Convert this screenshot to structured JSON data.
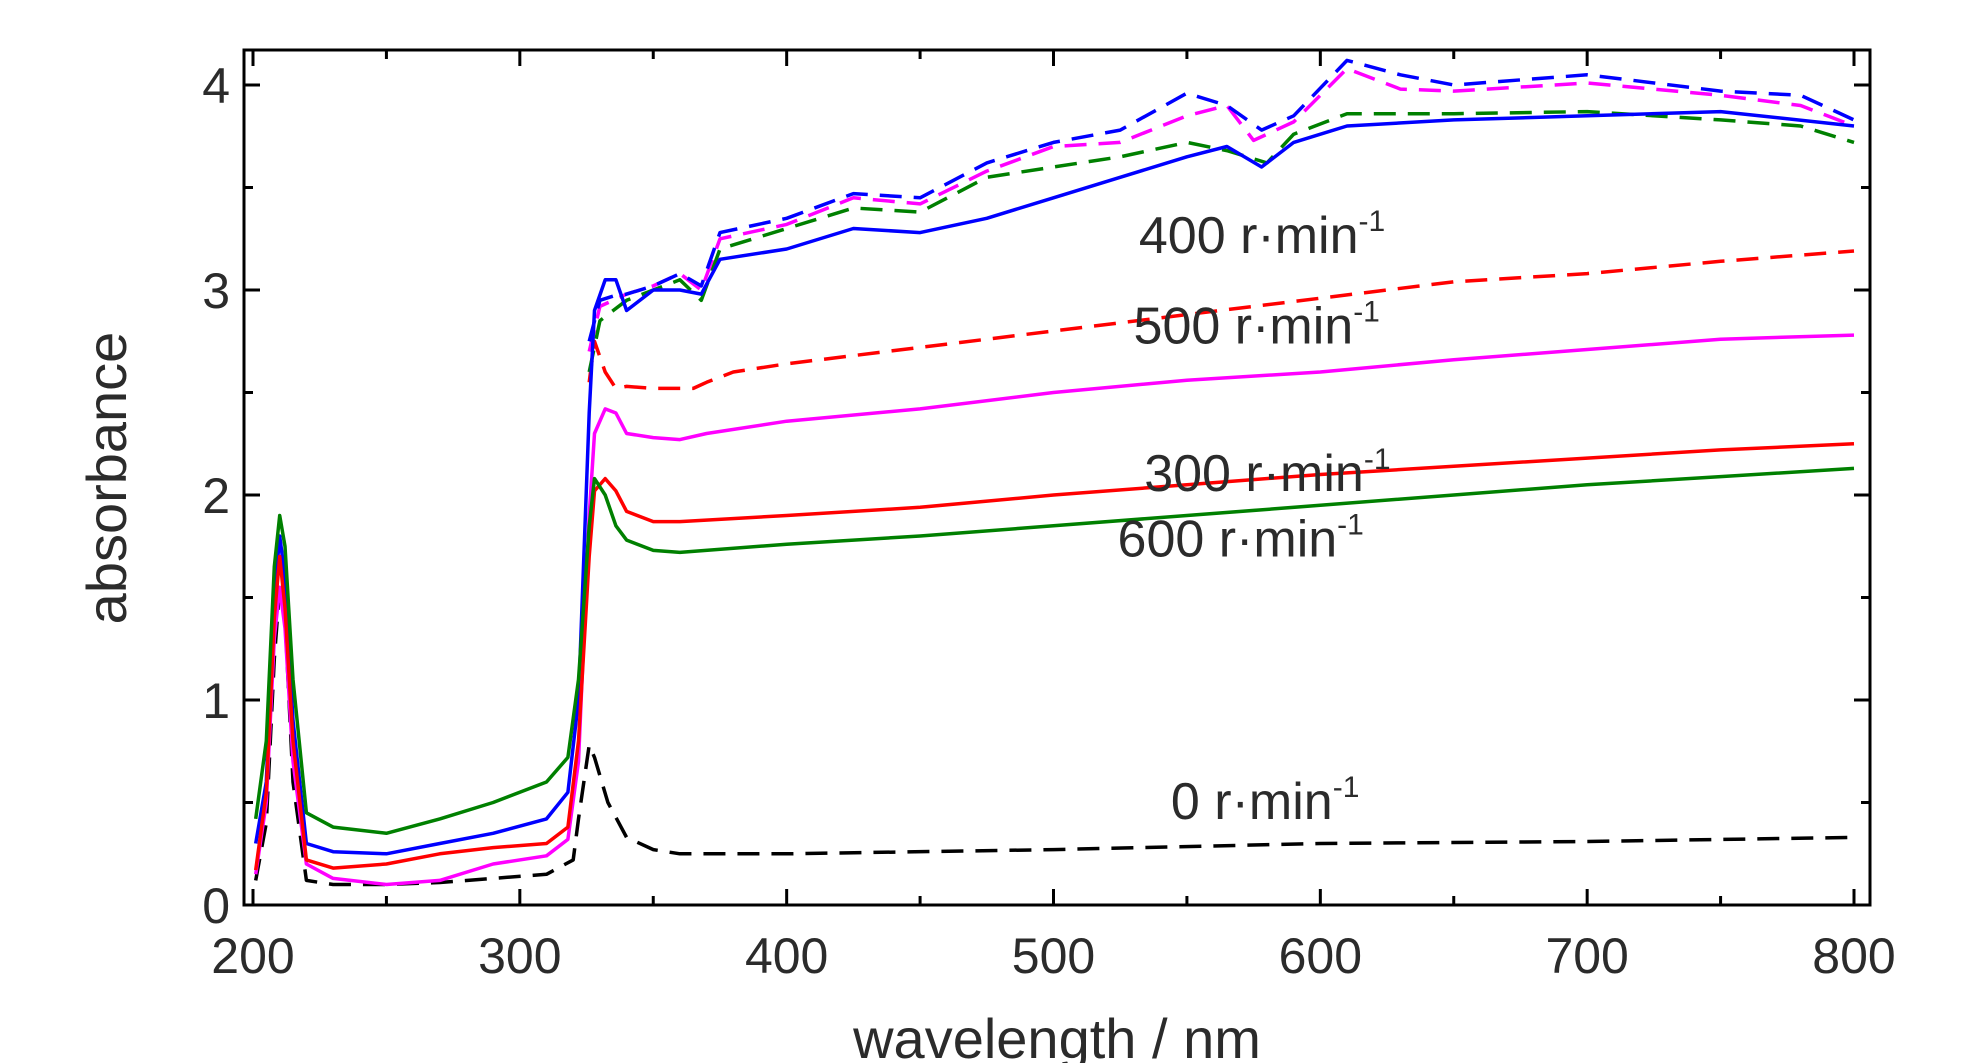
{
  "chart_data": {
    "type": "line",
    "title": "",
    "xlabel": "wavelength / nm",
    "ylabel": "absorbance",
    "xlim": [
      200,
      800
    ],
    "ylim": [
      0,
      4.2
    ],
    "xticks": [
      200,
      300,
      400,
      500,
      600,
      700,
      800
    ],
    "xtick_labels": [
      "200",
      "300",
      "400",
      "500",
      "600",
      "700",
      "800"
    ],
    "yticks": [
      0,
      1,
      2,
      3,
      4
    ],
    "ytick_labels": [
      "0",
      "1",
      "2",
      "3",
      "4"
    ],
    "grid": false,
    "series": [
      {
        "color": "#000000",
        "dash": true,
        "x": [
          201,
          205,
          208,
          210,
          212,
          215,
          220,
          230,
          250,
          270,
          290,
          310,
          320,
          322,
          326,
          328,
          333,
          340,
          350,
          360,
          400,
          500,
          600,
          700,
          800
        ],
        "y": [
          0.12,
          0.4,
          1.2,
          1.55,
          1.4,
          0.6,
          0.12,
          0.1,
          0.1,
          0.11,
          0.13,
          0.15,
          0.22,
          0.42,
          0.78,
          0.72,
          0.5,
          0.33,
          0.27,
          0.25,
          0.25,
          0.27,
          0.3,
          0.31,
          0.33
        ]
      },
      {
        "color": "#ff0000",
        "dash": true,
        "x": [
          326,
          328,
          332,
          336,
          340,
          350,
          365,
          370,
          380,
          400,
          450,
          500,
          550,
          600,
          650,
          700,
          750,
          800
        ],
        "y": [
          2.55,
          2.75,
          2.6,
          2.52,
          2.53,
          2.52,
          2.52,
          2.55,
          2.6,
          2.64,
          2.72,
          2.8,
          2.88,
          2.96,
          3.04,
          3.08,
          3.14,
          3.19
        ]
      },
      {
        "color": "#ff00ff",
        "dash": true,
        "x": [
          326,
          330,
          335,
          340,
          350,
          360,
          368,
          375,
          400,
          425,
          450,
          475,
          500,
          525,
          550,
          565,
          575,
          590,
          610,
          630,
          650,
          700,
          750,
          780,
          800
        ],
        "y": [
          2.7,
          2.92,
          2.95,
          2.98,
          3.02,
          3.08,
          3.0,
          3.25,
          3.32,
          3.45,
          3.42,
          3.58,
          3.7,
          3.72,
          3.85,
          3.9,
          3.73,
          3.82,
          4.08,
          3.98,
          3.97,
          4.01,
          3.95,
          3.9,
          3.8
        ]
      },
      {
        "color": "#0000ff",
        "dash": true,
        "x": [
          326,
          330,
          335,
          340,
          350,
          360,
          368,
          375,
          400,
          425,
          450,
          475,
          500,
          525,
          550,
          565,
          578,
          590,
          610,
          630,
          650,
          700,
          750,
          780,
          800
        ],
        "y": [
          2.75,
          2.95,
          2.97,
          2.98,
          3.02,
          3.08,
          3.02,
          3.28,
          3.35,
          3.47,
          3.45,
          3.62,
          3.72,
          3.78,
          3.96,
          3.9,
          3.78,
          3.85,
          4.12,
          4.05,
          4.0,
          4.05,
          3.97,
          3.95,
          3.83
        ]
      },
      {
        "color": "#008000",
        "dash": true,
        "x": [
          326,
          330,
          335,
          340,
          350,
          360,
          368,
          375,
          400,
          425,
          450,
          475,
          500,
          525,
          550,
          565,
          580,
          590,
          610,
          650,
          700,
          750,
          780,
          800
        ],
        "y": [
          2.6,
          2.85,
          2.9,
          2.95,
          3.0,
          3.05,
          2.95,
          3.2,
          3.3,
          3.4,
          3.38,
          3.55,
          3.6,
          3.65,
          3.72,
          3.68,
          3.62,
          3.76,
          3.86,
          3.86,
          3.87,
          3.83,
          3.8,
          3.72
        ]
      },
      {
        "color": "#0000ff",
        "dash": false,
        "x": [
          201,
          205,
          208,
          210,
          212,
          215,
          220,
          230,
          250,
          270,
          290,
          310,
          318,
          322,
          326,
          328,
          332,
          336,
          340,
          350,
          360,
          368,
          375,
          400,
          425,
          450,
          475,
          500,
          525,
          550,
          565,
          578,
          590,
          610,
          650,
          700,
          750,
          800
        ],
        "y": [
          0.3,
          0.6,
          1.5,
          1.8,
          1.6,
          0.9,
          0.3,
          0.26,
          0.25,
          0.3,
          0.35,
          0.42,
          0.55,
          1.0,
          2.4,
          2.9,
          3.05,
          3.05,
          2.9,
          3.0,
          3.0,
          2.98,
          3.15,
          3.2,
          3.3,
          3.28,
          3.35,
          3.45,
          3.55,
          3.65,
          3.7,
          3.6,
          3.72,
          3.8,
          3.83,
          3.85,
          3.87,
          3.8
        ]
      },
      {
        "color": "#ff00ff",
        "dash": false,
        "x": [
          201,
          205,
          208,
          210,
          212,
          215,
          220,
          230,
          250,
          270,
          290,
          310,
          318,
          322,
          326,
          328,
          332,
          336,
          340,
          350,
          360,
          370,
          400,
          450,
          500,
          550,
          600,
          650,
          700,
          750,
          800
        ],
        "y": [
          0.15,
          0.5,
          1.3,
          1.55,
          1.35,
          0.7,
          0.2,
          0.13,
          0.1,
          0.12,
          0.2,
          0.24,
          0.32,
          0.7,
          1.9,
          2.3,
          2.42,
          2.4,
          2.3,
          2.28,
          2.27,
          2.3,
          2.36,
          2.42,
          2.5,
          2.56,
          2.6,
          2.66,
          2.71,
          2.76,
          2.78
        ]
      },
      {
        "color": "#ff0000",
        "dash": false,
        "x": [
          201,
          205,
          208,
          210,
          212,
          215,
          220,
          230,
          250,
          270,
          290,
          310,
          318,
          322,
          326,
          328,
          332,
          336,
          340,
          350,
          360,
          400,
          450,
          500,
          550,
          600,
          650,
          700,
          750,
          800
        ],
        "y": [
          0.17,
          0.55,
          1.4,
          1.7,
          1.45,
          0.8,
          0.22,
          0.18,
          0.2,
          0.25,
          0.28,
          0.3,
          0.38,
          0.8,
          1.7,
          2.02,
          2.08,
          2.02,
          1.92,
          1.87,
          1.87,
          1.9,
          1.94,
          2.0,
          2.05,
          2.1,
          2.14,
          2.18,
          2.22,
          2.25
        ]
      },
      {
        "color": "#008000",
        "dash": false,
        "x": [
          201,
          205,
          208,
          210,
          212,
          215,
          220,
          230,
          250,
          270,
          290,
          310,
          318,
          322,
          326,
          328,
          332,
          336,
          340,
          350,
          360,
          400,
          450,
          500,
          550,
          600,
          650,
          700,
          750,
          800
        ],
        "y": [
          0.42,
          0.8,
          1.65,
          1.9,
          1.75,
          1.1,
          0.45,
          0.38,
          0.35,
          0.42,
          0.5,
          0.6,
          0.72,
          1.1,
          1.85,
          2.08,
          2.0,
          1.85,
          1.78,
          1.73,
          1.72,
          1.76,
          1.8,
          1.85,
          1.9,
          1.95,
          2.0,
          2.05,
          2.09,
          2.13
        ]
      }
    ],
    "annotations": [
      {
        "text": "400 r·min",
        "sup": "-1",
        "x": 532,
        "y": 3.18
      },
      {
        "text": "500 r·min",
        "sup": "-1",
        "x": 530,
        "y": 2.74
      },
      {
        "text": "300 r·min",
        "sup": "-1",
        "x": 534,
        "y": 2.02
      },
      {
        "text": "600 r·min",
        "sup": "-1",
        "x": 524,
        "y": 1.7
      },
      {
        "text": "0 r·min",
        "sup": "-1",
        "x": 544,
        "y": 0.42
      }
    ]
  }
}
